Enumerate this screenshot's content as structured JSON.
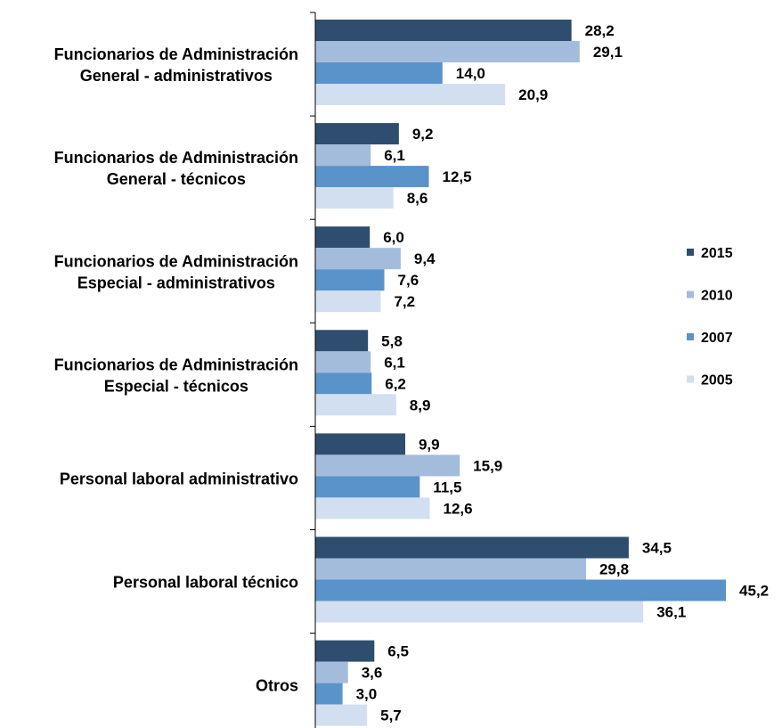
{
  "chart_data": {
    "type": "bar",
    "orientation": "horizontal",
    "categories": [
      [
        "Funcionarios de Administración",
        "General - administrativos"
      ],
      [
        "Funcionarios de Administración",
        "General - técnicos"
      ],
      [
        "Funcionarios de Administración",
        "Especial - administrativos"
      ],
      [
        "Funcionarios de Administración",
        "Especial - técnicos"
      ],
      [
        "Personal laboral administrativo"
      ],
      [
        "Personal laboral técnico"
      ],
      [
        "Otros"
      ]
    ],
    "series": [
      {
        "name": "2015",
        "color": "#2e4d6f",
        "values": [
          28.2,
          9.2,
          6.0,
          5.8,
          9.9,
          34.5,
          6.5
        ],
        "labels": [
          "28,2",
          "9,2",
          "6,0",
          "5,8",
          "9,9",
          "34,5",
          "6,5"
        ]
      },
      {
        "name": "2010",
        "color": "#a4bcdc",
        "values": [
          29.1,
          6.1,
          9.4,
          6.1,
          15.9,
          29.8,
          3.6
        ],
        "labels": [
          "29,1",
          "6,1",
          "9,4",
          "6,1",
          "15,9",
          "29,8",
          "3,6"
        ]
      },
      {
        "name": "2007",
        "color": "#5a93c9",
        "values": [
          14.0,
          12.5,
          7.6,
          6.2,
          11.5,
          45.2,
          3.0
        ],
        "labels": [
          "14,0",
          "12,5",
          "7,6",
          "6,2",
          "11,5",
          "45,2",
          "3,0"
        ]
      },
      {
        "name": "2005",
        "color": "#d1dff1",
        "values": [
          20.9,
          8.6,
          7.2,
          8.9,
          12.6,
          36.1,
          5.7
        ],
        "labels": [
          "20,9",
          "8,6",
          "7,2",
          "8,9",
          "12,6",
          "36,1",
          "5,7"
        ]
      }
    ],
    "xlim": [
      0,
      45.2
    ],
    "grid": false,
    "legend_position": "right"
  }
}
